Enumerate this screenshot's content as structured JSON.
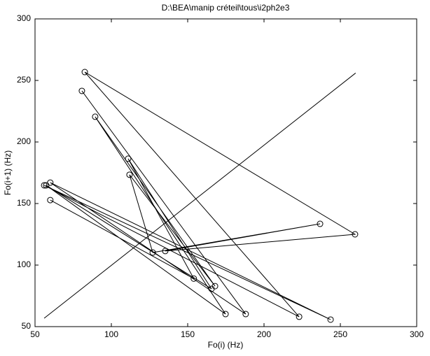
{
  "chart_data": {
    "type": "line",
    "title": "D:\\BEA\\manip créteil\\tous\\i2ph2e3",
    "x_label": "Fo(i) (Hz)",
    "y_label": "Fo(i+1) (Hz)",
    "xlim": [
      50,
      300
    ],
    "ylim": [
      50,
      300
    ],
    "xticks": [
      50,
      100,
      150,
      200,
      250,
      300
    ],
    "yticks": [
      50,
      100,
      150,
      200,
      250,
      300
    ],
    "series": [
      {
        "color": "#000000",
        "marker": "circle",
        "x": [
          60,
          154,
          111,
          165.6,
          57.3,
          174.8,
          89.4,
          167.9,
          111.9,
          127.1,
          236.7,
          135.3,
          259.6,
          82.6,
          223,
          56,
          243.6,
          60,
          188,
          80.7
        ],
        "values": [
          152.8,
          89,
          186.4,
          80.7,
          164.8,
          60.2,
          220.5,
          82.9,
          173.4,
          110.2,
          133.5,
          111.4,
          125,
          256.8,
          58,
          164.8,
          55.7,
          167,
          60.2,
          241.5
        ]
      },
      {
        "color": "#000000",
        "marker": "none",
        "x": [
          56,
          260
        ],
        "values": [
          56.8,
          256
        ]
      }
    ]
  }
}
